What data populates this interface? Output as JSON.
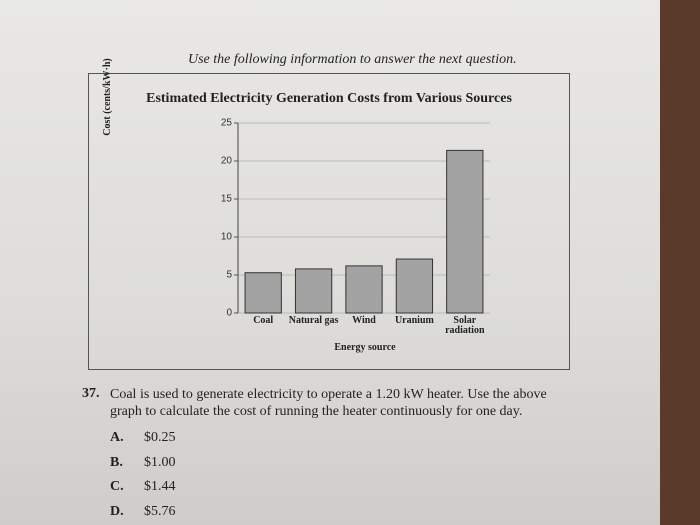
{
  "header": "Use the following information to answer the next question.",
  "chart_data": {
    "type": "bar",
    "title": "Estimated Electricity Generation Costs from Various Sources",
    "x_label": "Energy source",
    "y_label": "Cost (cents/kW·h)",
    "categories": [
      "Coal",
      "Natural gas",
      "Wind",
      "Uranium",
      "Solar radiation"
    ],
    "values": [
      5.3,
      5.8,
      6.2,
      7.1,
      21.4
    ],
    "color": "#a3a3a3",
    "ylim": [
      0,
      25
    ],
    "yticks": [
      0,
      5,
      10,
      15,
      20,
      25
    ],
    "grid": true
  },
  "question": {
    "number": "37.",
    "text": "Coal is used to generate electricity to operate a 1.20 kW heater. Use the above graph to calculate the cost of running the heater continuously for one day.",
    "options": [
      {
        "letter": "A.",
        "text": "$0.25"
      },
      {
        "letter": "B.",
        "text": "$1.00"
      },
      {
        "letter": "C.",
        "text": "$1.44"
      },
      {
        "letter": "D.",
        "text": "$5.76"
      }
    ]
  }
}
